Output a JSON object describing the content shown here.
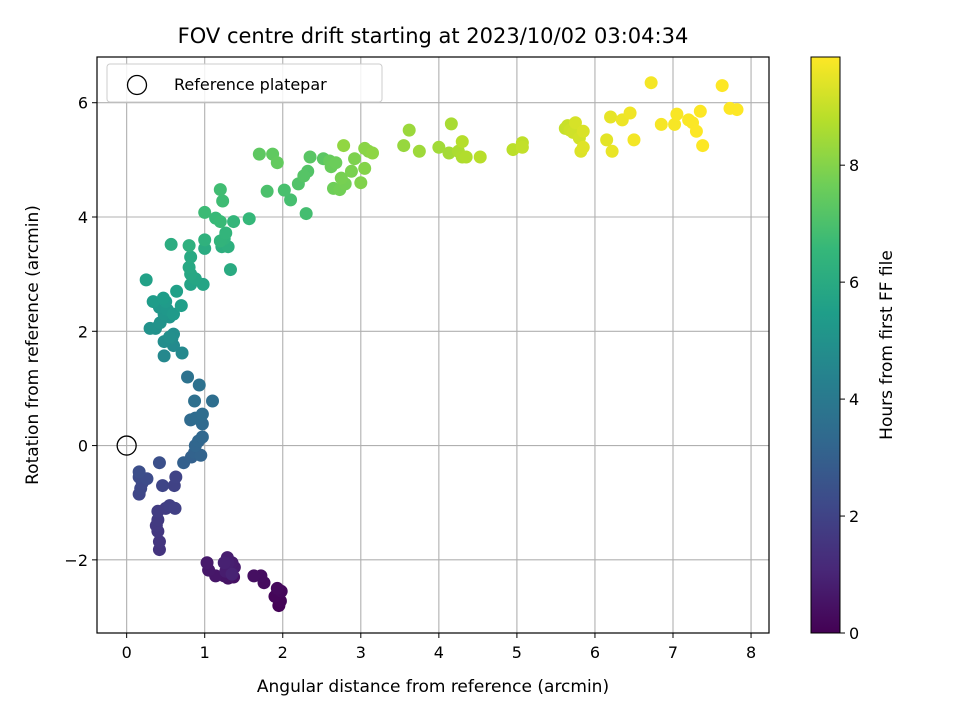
{
  "chart_data": {
    "type": "scatter",
    "title": "FOV centre drift starting at 2023/10/02 03:04:34",
    "xlabel": "Angular distance from reference (arcmin)",
    "ylabel": "Rotation from reference (arcmin)",
    "xlim": [
      -0.38,
      8.23
    ],
    "ylim": [
      -3.28,
      6.8
    ],
    "xticks": [
      0,
      1,
      2,
      3,
      4,
      5,
      6,
      7,
      8
    ],
    "yticks": [
      -2,
      0,
      2,
      4,
      6
    ],
    "grid": true,
    "legend": {
      "placement": "top-left",
      "entries": [
        "Reference platepar"
      ]
    },
    "reference_point": {
      "label": "Reference platepar",
      "x": 0,
      "y": 0
    },
    "colorbar": {
      "label": "Hours from first FF file",
      "colormap": "viridis",
      "range": [
        0,
        9.85
      ],
      "ticks": [
        0,
        2,
        4,
        6,
        8
      ]
    },
    "colormap_stops": [
      "#440154",
      "#482878",
      "#3e4989",
      "#31688e",
      "#26828e",
      "#1f9e89",
      "#35b779",
      "#6ece58",
      "#b5de2b",
      "#fde725"
    ],
    "points": [
      [
        1.95,
        -2.8,
        0.05
      ],
      [
        1.97,
        -2.72,
        0.1
      ],
      [
        1.9,
        -2.64,
        0.15
      ],
      [
        1.98,
        -2.55,
        0.2
      ],
      [
        1.93,
        -2.5,
        0.25
      ],
      [
        1.76,
        -2.4,
        0.3
      ],
      [
        1.72,
        -2.28,
        0.35
      ],
      [
        1.63,
        -2.28,
        0.4
      ],
      [
        1.37,
        -2.3,
        0.45
      ],
      [
        1.3,
        -2.32,
        0.5
      ],
      [
        1.25,
        -2.28,
        0.55
      ],
      [
        1.14,
        -2.28,
        0.6
      ],
      [
        1.05,
        -2.18,
        0.65
      ],
      [
        1.03,
        -2.05,
        0.7
      ],
      [
        1.38,
        -2.13,
        0.72
      ],
      [
        1.35,
        -2.05,
        0.75
      ],
      [
        1.27,
        -2.2,
        0.78
      ],
      [
        1.29,
        -1.96,
        0.82
      ],
      [
        1.3,
        -2.05,
        0.85
      ],
      [
        1.25,
        -2.05,
        0.9
      ],
      [
        1.35,
        -2.25,
        0.95
      ],
      [
        0.42,
        -1.82,
        1.5
      ],
      [
        0.42,
        -1.68,
        1.55
      ],
      [
        0.4,
        -1.5,
        1.6
      ],
      [
        0.38,
        -1.4,
        1.65
      ],
      [
        0.4,
        -1.3,
        1.7
      ],
      [
        0.4,
        -1.15,
        1.75
      ],
      [
        0.5,
        -1.1,
        1.8
      ],
      [
        0.55,
        -1.05,
        1.85
      ],
      [
        0.62,
        -1.1,
        1.9
      ],
      [
        0.61,
        -0.7,
        1.95
      ],
      [
        0.63,
        -0.55,
        2.0
      ],
      [
        0.46,
        -0.7,
        2.05
      ],
      [
        0.16,
        -0.85,
        2.1
      ],
      [
        0.18,
        -0.75,
        2.15
      ],
      [
        0.2,
        -0.65,
        2.2
      ],
      [
        0.16,
        -0.55,
        2.25
      ],
      [
        0.26,
        -0.58,
        2.3
      ],
      [
        0.16,
        -0.46,
        2.35
      ],
      [
        0.42,
        -0.3,
        2.4
      ],
      [
        0.73,
        -0.3,
        3.0
      ],
      [
        0.83,
        -0.2,
        3.05
      ],
      [
        0.87,
        -0.12,
        3.1
      ],
      [
        0.95,
        -0.17,
        3.15
      ],
      [
        0.88,
        0.0,
        3.2
      ],
      [
        0.92,
        0.08,
        3.25
      ],
      [
        0.97,
        0.15,
        3.3
      ],
      [
        0.97,
        0.38,
        3.35
      ],
      [
        0.82,
        0.45,
        3.4
      ],
      [
        0.88,
        0.48,
        3.45
      ],
      [
        0.97,
        0.55,
        3.5
      ],
      [
        1.1,
        0.78,
        3.55
      ],
      [
        0.87,
        0.78,
        3.6
      ],
      [
        0.93,
        1.06,
        3.65
      ],
      [
        0.78,
        1.2,
        3.7
      ],
      [
        0.48,
        1.57,
        4.6
      ],
      [
        0.71,
        1.62,
        4.65
      ],
      [
        0.6,
        1.75,
        4.7
      ],
      [
        0.58,
        1.88,
        4.75
      ],
      [
        0.48,
        1.82,
        4.8
      ],
      [
        0.6,
        1.95,
        4.85
      ],
      [
        0.55,
        1.9,
        4.9
      ],
      [
        0.37,
        2.05,
        4.95
      ],
      [
        0.3,
        2.05,
        5.0
      ],
      [
        0.43,
        2.15,
        5.05
      ],
      [
        0.55,
        2.25,
        5.1
      ],
      [
        0.48,
        2.3,
        5.15
      ],
      [
        0.42,
        2.42,
        5.2
      ],
      [
        0.52,
        2.38,
        5.25
      ],
      [
        0.6,
        2.3,
        5.3
      ],
      [
        0.5,
        2.52,
        5.35
      ],
      [
        0.34,
        2.52,
        5.4
      ],
      [
        0.47,
        2.58,
        5.45
      ],
      [
        0.7,
        2.45,
        5.5
      ],
      [
        0.64,
        2.7,
        5.55
      ],
      [
        0.25,
        2.9,
        5.6
      ],
      [
        0.82,
        2.82,
        5.7
      ],
      [
        0.98,
        2.82,
        5.75
      ],
      [
        0.88,
        2.92,
        5.8
      ],
      [
        0.82,
        3.0,
        5.85
      ],
      [
        0.8,
        3.12,
        5.9
      ],
      [
        0.82,
        3.3,
        5.95
      ],
      [
        1.33,
        3.08,
        6.0
      ],
      [
        1.0,
        3.45,
        6.05
      ],
      [
        0.57,
        3.52,
        6.1
      ],
      [
        1.22,
        3.48,
        6.15
      ],
      [
        1.3,
        3.48,
        6.2
      ],
      [
        0.8,
        3.5,
        6.25
      ],
      [
        1.0,
        3.6,
        6.3
      ],
      [
        1.25,
        3.62,
        6.35
      ],
      [
        1.2,
        3.58,
        6.4
      ],
      [
        1.27,
        3.72,
        6.45
      ],
      [
        1.37,
        3.92,
        6.5
      ],
      [
        1.57,
        3.97,
        6.55
      ],
      [
        1.14,
        3.98,
        6.6
      ],
      [
        1.2,
        3.92,
        6.65
      ],
      [
        1.0,
        4.08,
        6.7
      ],
      [
        1.23,
        4.28,
        6.75
      ],
      [
        1.2,
        4.48,
        6.8
      ],
      [
        2.3,
        4.06,
        6.85
      ],
      [
        2.1,
        4.3,
        6.9
      ],
      [
        2.02,
        4.47,
        6.95
      ],
      [
        1.8,
        4.45,
        7.0
      ],
      [
        2.2,
        4.58,
        7.1
      ],
      [
        2.32,
        4.8,
        7.15
      ],
      [
        2.27,
        4.72,
        7.2
      ],
      [
        2.35,
        5.05,
        7.25
      ],
      [
        2.52,
        5.02,
        7.3
      ],
      [
        1.7,
        5.1,
        7.35
      ],
      [
        1.87,
        5.1,
        7.4
      ],
      [
        1.93,
        4.95,
        7.45
      ],
      [
        2.6,
        4.98,
        7.5
      ],
      [
        2.62,
        4.88,
        7.55
      ],
      [
        2.68,
        4.95,
        7.6
      ],
      [
        2.65,
        4.5,
        7.65
      ],
      [
        2.73,
        4.48,
        7.7
      ],
      [
        2.8,
        4.58,
        7.75
      ],
      [
        2.75,
        4.68,
        7.8
      ],
      [
        2.88,
        4.8,
        7.85
      ],
      [
        2.92,
        5.02,
        7.9
      ],
      [
        3.0,
        4.6,
        7.95
      ],
      [
        3.05,
        4.85,
        8.0
      ],
      [
        3.1,
        5.15,
        8.05
      ],
      [
        3.05,
        5.2,
        8.1
      ],
      [
        3.15,
        5.12,
        8.15
      ],
      [
        2.78,
        5.25,
        8.2
      ],
      [
        3.55,
        5.25,
        8.3
      ],
      [
        3.62,
        5.52,
        8.35
      ],
      [
        3.75,
        5.15,
        8.4
      ],
      [
        4.0,
        5.22,
        8.45
      ],
      [
        4.13,
        5.12,
        8.5
      ],
      [
        4.16,
        5.63,
        8.55
      ],
      [
        4.25,
        5.15,
        8.6
      ],
      [
        4.3,
        5.05,
        8.65
      ],
      [
        4.35,
        5.05,
        8.7
      ],
      [
        4.3,
        5.32,
        8.75
      ],
      [
        4.53,
        5.05,
        8.8
      ],
      [
        4.95,
        5.18,
        8.85
      ],
      [
        5.07,
        5.3,
        8.9
      ],
      [
        5.07,
        5.22,
        8.95
      ],
      [
        5.62,
        5.55,
        9.0
      ],
      [
        5.65,
        5.6,
        9.05
      ],
      [
        5.68,
        5.52,
        9.1
      ],
      [
        5.72,
        5.48,
        9.15
      ],
      [
        5.8,
        5.38,
        9.2
      ],
      [
        5.75,
        5.65,
        9.25
      ],
      [
        5.85,
        5.5,
        9.3
      ],
      [
        5.82,
        5.15,
        9.35
      ],
      [
        5.85,
        5.22,
        9.4
      ],
      [
        6.15,
        5.35,
        9.45
      ],
      [
        6.2,
        5.75,
        9.5
      ],
      [
        6.22,
        5.15,
        9.55
      ],
      [
        6.35,
        5.7,
        9.6
      ],
      [
        6.45,
        5.82,
        9.65
      ],
      [
        6.5,
        5.35,
        9.7
      ],
      [
        6.72,
        6.35,
        9.72
      ],
      [
        6.85,
        5.62,
        9.74
      ],
      [
        7.02,
        5.62,
        9.76
      ],
      [
        7.05,
        5.8,
        9.78
      ],
      [
        7.2,
        5.7,
        9.8
      ],
      [
        7.25,
        5.65,
        9.82
      ],
      [
        7.3,
        5.5,
        9.83
      ],
      [
        7.35,
        5.85,
        9.84
      ],
      [
        7.38,
        5.25,
        9.84
      ],
      [
        7.63,
        6.3,
        9.85
      ],
      [
        7.73,
        5.9,
        9.85
      ],
      [
        7.82,
        5.88,
        9.85
      ]
    ]
  }
}
